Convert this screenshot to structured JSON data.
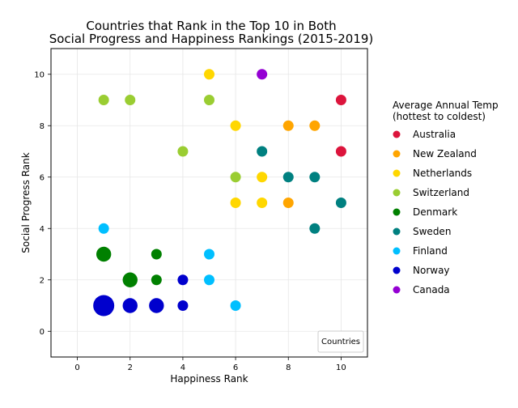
{
  "chart_data": {
    "type": "scatter",
    "title": [
      "Countries that Rank in the Top 10 in Both",
      "Social Progress and Happiness Rankings (2015-2019)"
    ],
    "xlabel": "Happiness Rank",
    "ylabel": "Social Progress Rank",
    "xlim": [
      -1,
      11
    ],
    "ylim": [
      -1,
      11
    ],
    "xticks": [
      0,
      2,
      4,
      6,
      8,
      10
    ],
    "yticks": [
      0,
      2,
      4,
      6,
      8,
      10
    ],
    "grid": true,
    "legend_title": [
      "Average Annual Temp",
      "(hottest to coldest)"
    ],
    "legend_placement": "outside-right",
    "inner_legend_label": "Countries",
    "inner_legend_placement": "lower-right",
    "series": [
      {
        "name": "Australia",
        "color": "#dc143c",
        "points": [
          {
            "x": 10,
            "y": 9,
            "count": 1
          },
          {
            "x": 10,
            "y": 7,
            "count": 1
          }
        ]
      },
      {
        "name": "New Zealand",
        "color": "#ffa500",
        "points": [
          {
            "x": 8,
            "y": 8,
            "count": 1
          },
          {
            "x": 9,
            "y": 8,
            "count": 1
          },
          {
            "x": 8,
            "y": 5,
            "count": 1
          }
        ]
      },
      {
        "name": "Netherlands",
        "color": "#ffd700",
        "points": [
          {
            "x": 5,
            "y": 10,
            "count": 1
          },
          {
            "x": 6,
            "y": 8,
            "count": 1
          },
          {
            "x": 7,
            "y": 6,
            "count": 1
          },
          {
            "x": 6,
            "y": 5,
            "count": 1
          },
          {
            "x": 7,
            "y": 5,
            "count": 1
          }
        ]
      },
      {
        "name": "Switzerland",
        "color": "#9acd32",
        "points": [
          {
            "x": 1,
            "y": 9,
            "count": 1
          },
          {
            "x": 2,
            "y": 9,
            "count": 1
          },
          {
            "x": 5,
            "y": 9,
            "count": 1
          },
          {
            "x": 4,
            "y": 7,
            "count": 1
          },
          {
            "x": 6,
            "y": 6,
            "count": 1
          }
        ]
      },
      {
        "name": "Denmark",
        "color": "#008000",
        "points": [
          {
            "x": 1,
            "y": 3,
            "count": 2
          },
          {
            "x": 3,
            "y": 3,
            "count": 1
          },
          {
            "x": 2,
            "y": 2,
            "count": 2
          },
          {
            "x": 3,
            "y": 2,
            "count": 1
          }
        ]
      },
      {
        "name": "Sweden",
        "color": "#008080",
        "points": [
          {
            "x": 7,
            "y": 7,
            "count": 1
          },
          {
            "x": 8,
            "y": 6,
            "count": 1
          },
          {
            "x": 9,
            "y": 6,
            "count": 1
          },
          {
            "x": 10,
            "y": 5,
            "count": 1
          },
          {
            "x": 9,
            "y": 4,
            "count": 1
          }
        ]
      },
      {
        "name": "Finland",
        "color": "#00bfff",
        "points": [
          {
            "x": 1,
            "y": 4,
            "count": 1
          },
          {
            "x": 5,
            "y": 3,
            "count": 1
          },
          {
            "x": 5,
            "y": 2,
            "count": 1
          },
          {
            "x": 6,
            "y": 1,
            "count": 1
          }
        ]
      },
      {
        "name": "Norway",
        "color": "#0000cd",
        "points": [
          {
            "x": 4,
            "y": 2,
            "count": 1
          },
          {
            "x": 1,
            "y": 1,
            "count": 4
          },
          {
            "x": 2,
            "y": 1,
            "count": 2
          },
          {
            "x": 3,
            "y": 1,
            "count": 2
          },
          {
            "x": 4,
            "y": 1,
            "count": 1
          }
        ]
      },
      {
        "name": "Canada",
        "color": "#9400d3",
        "points": [
          {
            "x": 7,
            "y": 10,
            "count": 1
          }
        ]
      }
    ]
  }
}
